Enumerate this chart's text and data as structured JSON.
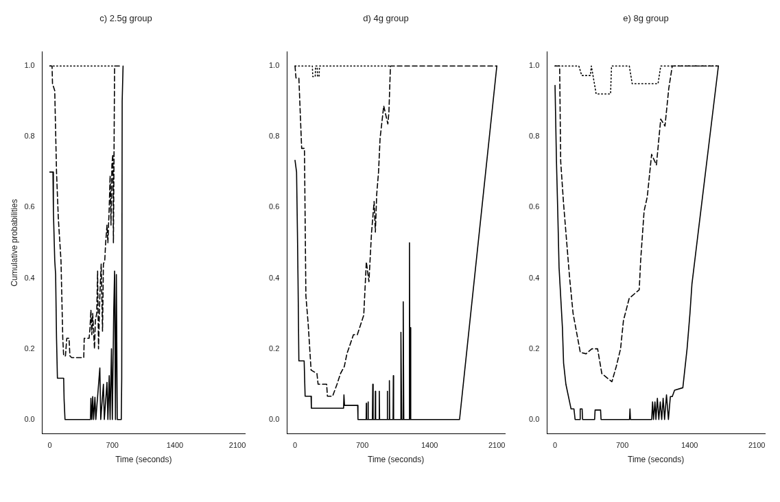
{
  "chart_data": [
    {
      "type": "line",
      "title": "c) 2.5g group",
      "xlabel": "Time (seconds)",
      "ylabel": "Cumulative probabilities",
      "xlim": [
        -84,
        2184
      ],
      "xticks": [
        0,
        700,
        1400,
        2100
      ],
      "ylim": [
        -0.04,
        1.04
      ],
      "yticks": [
        {
          "value": 0,
          "label": "0.0"
        },
        {
          "value": 0.2,
          "label": "0.2"
        },
        {
          "value": 0.4,
          "label": "0.4"
        },
        {
          "value": 0.6,
          "label": "0.6"
        },
        {
          "value": 0.8,
          "label": "0.8"
        },
        {
          "value": 1,
          "label": "1.0"
        }
      ],
      "series": [
        {
          "color": "#000000",
          "line_style": "solid",
          "x": [
            0,
            35,
            40,
            55,
            65,
            75,
            85,
            155,
            160,
            170,
            455,
            460,
            470,
            480,
            490,
            505,
            515,
            560,
            570,
            600,
            610,
            640,
            650,
            665,
            675,
            690,
            700,
            715,
            725,
            735,
            745,
            755,
            800,
            805,
            810,
            820
          ],
          "values": [
            0.7,
            0.7,
            0.59,
            0.45,
            0.41,
            0.23,
            0.117,
            0.117,
            0.056,
            0,
            0,
            0.06,
            0,
            0.065,
            0,
            0.063,
            0,
            0.146,
            0,
            0.1,
            0,
            0.105,
            0,
            0.124,
            0,
            0.2,
            0,
            0.3,
            0.42,
            0,
            0.41,
            0,
            0,
            0.117,
            0.9,
            1
          ]
        },
        {
          "color": "#000000",
          "line_style": "dashed",
          "x": [
            0,
            25,
            30,
            55,
            75,
            95,
            125,
            145,
            155,
            175,
            190,
            215,
            225,
            245,
            380,
            385,
            440,
            450,
            460,
            470,
            480,
            500,
            510,
            525,
            535,
            545,
            560,
            575,
            590,
            600,
            615,
            625,
            640,
            650,
            665,
            675,
            685,
            695,
            705,
            712,
            718,
            725,
            800
          ],
          "values": [
            1,
            1,
            0.95,
            0.93,
            0.7,
            0.57,
            0.45,
            0.23,
            0.18,
            0.18,
            0.23,
            0.23,
            0.18,
            0.175,
            0.175,
            0.23,
            0.23,
            0.26,
            0.31,
            0.24,
            0.3,
            0.2,
            0.28,
            0.3,
            0.42,
            0.2,
            0.35,
            0.44,
            0.25,
            0.44,
            0.45,
            0.5,
            0.55,
            0.5,
            0.6,
            0.69,
            0.55,
            0.72,
            0.75,
            0.5,
            0.72,
            1,
            1
          ]
        },
        {
          "color": "#000000",
          "line_style": "dotted",
          "x": [
            0,
            720
          ],
          "values": [
            1,
            1
          ]
        }
      ]
    },
    {
      "type": "line",
      "title": "d) 4g group",
      "xlabel": "Time (seconds)",
      "xlim": [
        -84,
        2184
      ],
      "xticks": [
        0,
        700,
        1400,
        2100
      ],
      "ylim": [
        -0.04,
        1.04
      ],
      "yticks": [
        {
          "value": 0,
          "label": "0.0"
        },
        {
          "value": 0.2,
          "label": "0.2"
        },
        {
          "value": 0.4,
          "label": "0.4"
        },
        {
          "value": 0.6,
          "label": "0.6"
        },
        {
          "value": 0.8,
          "label": "0.8"
        },
        {
          "value": 1,
          "label": "1.0"
        }
      ],
      "series": [
        {
          "color": "#000000",
          "line_style": "solid",
          "x": [
            0,
            16,
            25,
            31,
            40,
            95,
            105,
            167,
            170,
            505,
            509,
            515,
            652,
            655,
            740,
            742,
            745,
            758,
            760,
            763,
            805,
            809,
            813,
            834,
            836,
            839,
            875,
            877,
            880,
            958,
            960,
            963,
            980,
            982,
            985,
            1020,
            1023,
            1026,
            1100,
            1102,
            1110,
            1124,
            1126,
            1132,
            1189,
            1191,
            1196,
            1200,
            1204,
            1712,
            2100
          ],
          "values": [
            0.733,
            0.7,
            0.53,
            0.4,
            0.166,
            0.166,
            0.066,
            0.066,
            0.032,
            0.032,
            0.07,
            0.04,
            0.04,
            0,
            0,
            0.046,
            0,
            0,
            0.05,
            0,
            0,
            0.1,
            0,
            0,
            0.08,
            0,
            0,
            0.08,
            0,
            0,
            0.08,
            0,
            0,
            0.11,
            0,
            0,
            0.124,
            0,
            0,
            0.247,
            0,
            0,
            0.333,
            0,
            0,
            0.5,
            0,
            0.26,
            0,
            0,
            1
          ]
        },
        {
          "color": "#000000",
          "line_style": "dashed",
          "x": [
            0,
            10,
            40,
            69,
            98,
            113,
            137,
            167,
            228,
            240,
            329,
            337,
            391,
            437,
            473,
            513,
            540,
            608,
            648,
            715,
            742,
            769,
            796,
            823,
            836,
            850,
            869,
            885,
            923,
            966,
            977,
            993,
            2100
          ],
          "values": [
            1,
            0.966,
            0.966,
            0.767,
            0.767,
            0.35,
            0.27,
            0.14,
            0.13,
            0.1,
            0.1,
            0.066,
            0.066,
            0.1,
            0.13,
            0.15,
            0.186,
            0.24,
            0.24,
            0.295,
            0.446,
            0.39,
            0.528,
            0.617,
            0.53,
            0.637,
            0.7,
            0.795,
            0.887,
            0.836,
            0.87,
            1,
            1
          ]
        },
        {
          "color": "#000000",
          "line_style": "dotted",
          "x": [
            0,
            180,
            185,
            210,
            215,
            230,
            235,
            250,
            255,
            1000
          ],
          "values": [
            1,
            1,
            0.97,
            0.97,
            1,
            1,
            0.97,
            0.97,
            1,
            1
          ]
        }
      ]
    },
    {
      "type": "line",
      "title": "e) 8g group",
      "xlabel": "Time (seconds)",
      "xlim": [
        -84,
        2184
      ],
      "xticks": [
        0,
        700,
        1400,
        2100
      ],
      "ylim": [
        -0.04,
        1.04
      ],
      "yticks": [
        {
          "value": 0,
          "label": "0.0"
        },
        {
          "value": 0.2,
          "label": "0.2"
        },
        {
          "value": 0.4,
          "label": "0.4"
        },
        {
          "value": 0.6,
          "label": "0.6"
        },
        {
          "value": 0.8,
          "label": "0.8"
        },
        {
          "value": 1,
          "label": "1.0"
        }
      ],
      "series": [
        {
          "color": "#000000",
          "line_style": "solid",
          "x": [
            0,
            15,
            30,
            42,
            77,
            89,
            113,
            167,
            197,
            209,
            257,
            262,
            282,
            287,
            412,
            417,
            474,
            479,
            775,
            780,
            785,
            1006,
            1015,
            1025,
            1040,
            1050,
            1065,
            1080,
            1095,
            1110,
            1125,
            1140,
            1160,
            1180,
            1200,
            1220,
            1244,
            1330,
            1374,
            1404,
            1425,
            1700
          ],
          "values": [
            0.945,
            0.73,
            0.57,
            0.43,
            0.26,
            0.16,
            0.1,
            0.03,
            0.03,
            0,
            0,
            0.03,
            0.03,
            0,
            0,
            0.027,
            0.027,
            0,
            0,
            0.03,
            0,
            0,
            0.05,
            0,
            0.05,
            0,
            0.06,
            0,
            0.05,
            0,
            0.06,
            0,
            0.07,
            0,
            0.065,
            0.065,
            0.083,
            0.09,
            0.2,
            0.3,
            0.384,
            1
          ]
        },
        {
          "color": "#000000",
          "line_style": "dashed",
          "x": [
            0,
            48,
            59,
            89,
            152,
            188,
            263,
            323,
            383,
            443,
            487,
            592,
            637,
            682,
            712,
            772,
            876,
            891,
            927,
            960,
            1005,
            1055,
            1100,
            1144,
            1183,
            1220,
            1700
          ],
          "values": [
            1,
            1,
            0.73,
            0.61,
            0.4,
            0.3,
            0.19,
            0.186,
            0.2,
            0.2,
            0.13,
            0.107,
            0.15,
            0.2,
            0.28,
            0.343,
            0.367,
            0.45,
            0.59,
            0.63,
            0.75,
            0.72,
            0.85,
            0.83,
            0.935,
            1,
            1
          ]
        },
        {
          "color": "#000000",
          "line_style": "dotted",
          "x": [
            0,
            248,
            278,
            368,
            378,
            428,
            578,
            588,
            773,
            803,
            1072,
            1100,
            1700
          ],
          "values": [
            1,
            1,
            0.973,
            0.973,
            1,
            0.921,
            0.921,
            1,
            1,
            0.95,
            0.95,
            1,
            1
          ]
        }
      ]
    }
  ]
}
